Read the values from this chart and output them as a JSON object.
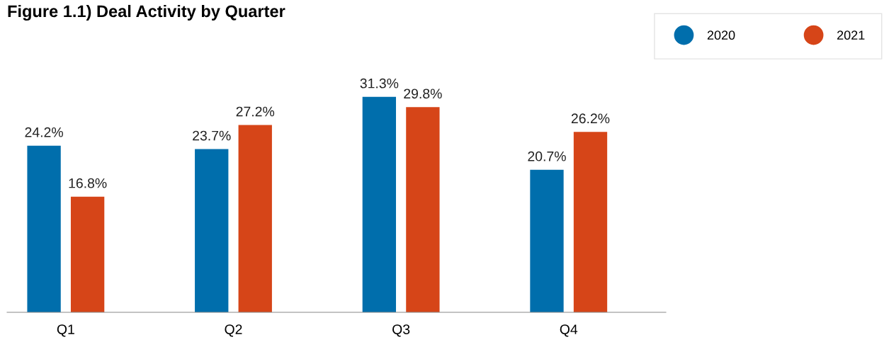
{
  "chart_data": {
    "type": "bar",
    "title": "Figure 1.1) Deal Activity by Quarter",
    "categories": [
      "Q1",
      "Q2",
      "Q3",
      "Q4"
    ],
    "series": [
      {
        "name": "2020",
        "color": "#006eac",
        "values": [
          24.2,
          23.7,
          31.3,
          20.7
        ],
        "value_labels": [
          "24.2%",
          "23.7%",
          "31.3%",
          "20.7%"
        ]
      },
      {
        "name": "2021",
        "color": "#d64518",
        "values": [
          16.8,
          27.2,
          29.8,
          26.2
        ],
        "value_labels": [
          "16.8%",
          "27.2%",
          "29.8%",
          "26.2%"
        ]
      }
    ],
    "grid": false,
    "legend": "top right",
    "tick_labels": "x"
  }
}
